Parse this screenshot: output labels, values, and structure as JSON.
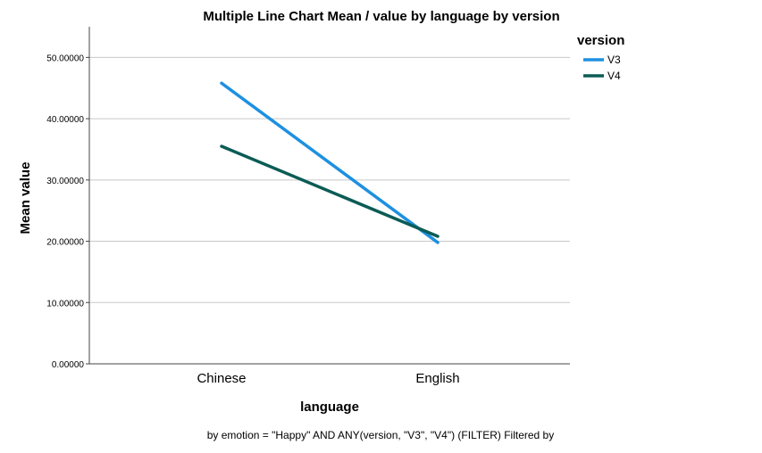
{
  "chart_data": {
    "type": "line",
    "title": "Multiple Line Chart Mean /  value by language by version",
    "xlabel": "language",
    "ylabel": "Mean value",
    "categories": [
      "Chinese",
      "English"
    ],
    "series": [
      {
        "name": "V3",
        "values": [
          45.8,
          19.8
        ],
        "color": "#1e90e0"
      },
      {
        "name": "V4",
        "values": [
          35.5,
          20.8
        ],
        "color": "#0b5c55"
      }
    ],
    "ylim": [
      0,
      55
    ],
    "yticks": [
      0,
      10,
      20,
      30,
      40,
      50
    ],
    "ytick_labels": [
      "0.00000",
      "10.00000",
      "20.00000",
      "30.00000",
      "40.00000",
      "50.00000"
    ],
    "grid": true,
    "legend": {
      "title": "version",
      "placement": "right"
    },
    "footnote": "by emotion = \"Happy\" AND ANY(version, \"V3\", \"V4\") (FILTER) Filtered by"
  }
}
